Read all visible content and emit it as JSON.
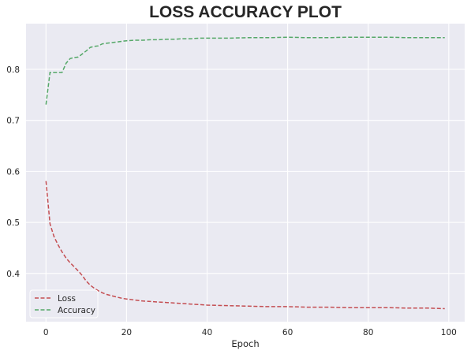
{
  "chart_data": {
    "type": "line",
    "title": "LOSS ACCURACY PLOT",
    "xlabel": "Epoch",
    "ylabel": "",
    "xlim": [
      -4.95,
      103.95
    ],
    "ylim": [
      0.3055,
      0.8895
    ],
    "xticks": [
      0,
      20,
      40,
      60,
      80,
      100
    ],
    "yticks": [
      0.4,
      0.5,
      0.6,
      0.7,
      0.8
    ],
    "grid": true,
    "legend_position": "lower-left",
    "series": [
      {
        "name": "Loss",
        "color": "#c44e52",
        "style": "dashed",
        "x": [
          0,
          1,
          2,
          3,
          4,
          5,
          6,
          7,
          8,
          9,
          10,
          11,
          12,
          13,
          14,
          15,
          16,
          17,
          18,
          19,
          20,
          22,
          24,
          26,
          28,
          30,
          32,
          34,
          36,
          38,
          40,
          45,
          50,
          55,
          60,
          65,
          70,
          75,
          80,
          85,
          90,
          95,
          99
        ],
        "values": [
          0.581,
          0.497,
          0.472,
          0.456,
          0.442,
          0.43,
          0.421,
          0.413,
          0.405,
          0.396,
          0.385,
          0.377,
          0.371,
          0.366,
          0.362,
          0.359,
          0.357,
          0.355,
          0.353,
          0.351,
          0.35,
          0.348,
          0.346,
          0.345,
          0.344,
          0.343,
          0.342,
          0.341,
          0.34,
          0.339,
          0.338,
          0.337,
          0.336,
          0.335,
          0.335,
          0.334,
          0.334,
          0.333,
          0.333,
          0.333,
          0.332,
          0.332,
          0.331
        ]
      },
      {
        "name": "Accuracy",
        "color": "#55a868",
        "style": "dashed",
        "x": [
          0,
          1,
          2,
          3,
          4,
          5,
          6,
          7,
          8,
          9,
          10,
          11,
          12,
          13,
          14,
          15,
          16,
          17,
          18,
          19,
          20,
          22,
          24,
          26,
          28,
          30,
          32,
          34,
          36,
          38,
          40,
          45,
          50,
          55,
          60,
          65,
          70,
          75,
          80,
          85,
          90,
          95,
          99
        ],
        "values": [
          0.731,
          0.794,
          0.794,
          0.794,
          0.794,
          0.812,
          0.821,
          0.823,
          0.824,
          0.83,
          0.836,
          0.843,
          0.845,
          0.846,
          0.85,
          0.851,
          0.852,
          0.853,
          0.854,
          0.855,
          0.856,
          0.857,
          0.857,
          0.858,
          0.858,
          0.859,
          0.859,
          0.86,
          0.86,
          0.861,
          0.861,
          0.861,
          0.862,
          0.862,
          0.863,
          0.862,
          0.862,
          0.863,
          0.863,
          0.863,
          0.862,
          0.862,
          0.862
        ]
      }
    ]
  }
}
